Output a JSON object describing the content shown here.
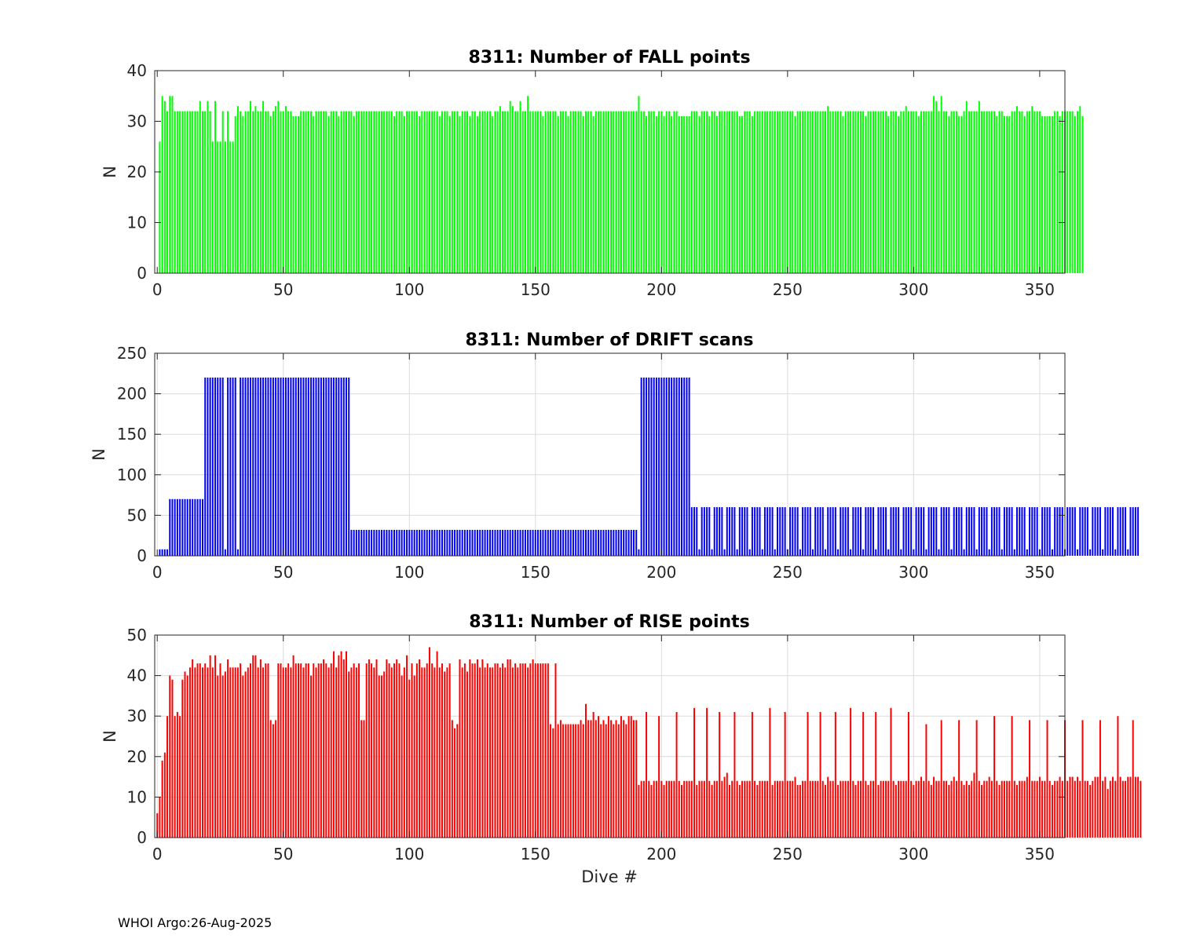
{
  "footer": {
    "note": "WHOI Argo:26-Aug-2025"
  },
  "chart_data": [
    {
      "type": "bar",
      "title": "8311: Number of FALL points",
      "xlabel": "",
      "ylabel": "N",
      "xlim": [
        -1,
        360
      ],
      "ylim": [
        0,
        40
      ],
      "xticks": [
        "0",
        "50",
        "100",
        "150",
        "200",
        "250",
        "300",
        "350"
      ],
      "yticks": [
        "0",
        "10",
        "20",
        "30",
        "40"
      ],
      "grid": false,
      "color": "#00ff00",
      "x_start": 1,
      "values": [
        26,
        35,
        34,
        32,
        35,
        35,
        32,
        32,
        32,
        32,
        32,
        32,
        32,
        32,
        32,
        32,
        34,
        32,
        32,
        34,
        32,
        26,
        34,
        26,
        26,
        32,
        26,
        32,
        26,
        26,
        31,
        33,
        32,
        31,
        32,
        32,
        34,
        32,
        33,
        32,
        32,
        34,
        32,
        32,
        31,
        32,
        33,
        34,
        32,
        32,
        33,
        32,
        32,
        31,
        31,
        31,
        32,
        32,
        32,
        32,
        32,
        31,
        32,
        32,
        32,
        32,
        32,
        31,
        32,
        32,
        32,
        31,
        32,
        32,
        32,
        32,
        32,
        31,
        32,
        32,
        32,
        32,
        32,
        32,
        32,
        32,
        32,
        32,
        32,
        32,
        32,
        32,
        32,
        31,
        32,
        32,
        32,
        31,
        32,
        32,
        32,
        32,
        32,
        31,
        32,
        32,
        32,
        32,
        32,
        32,
        32,
        31,
        32,
        32,
        32,
        31,
        32,
        32,
        32,
        31,
        32,
        32,
        32,
        31,
        32,
        32,
        31,
        32,
        32,
        32,
        32,
        32,
        31,
        32,
        32,
        33,
        32,
        32,
        32,
        34,
        33,
        32,
        32,
        34,
        32,
        32,
        35,
        32,
        32,
        32,
        32,
        32,
        31,
        32,
        32,
        32,
        32,
        32,
        31,
        32,
        32,
        32,
        31,
        32,
        32,
        32,
        32,
        32,
        31,
        32,
        32,
        32,
        31,
        32,
        32,
        32,
        32,
        32,
        32,
        32,
        32,
        32,
        32,
        32,
        32,
        32,
        32,
        32,
        32,
        32,
        35,
        32,
        32,
        31,
        32,
        32,
        32,
        31,
        32,
        32,
        31,
        32,
        32,
        31,
        32,
        32,
        31,
        31,
        31,
        31,
        31,
        32,
        32,
        32,
        31,
        32,
        32,
        32,
        31,
        32,
        32,
        31,
        32,
        32,
        32,
        32,
        32,
        32,
        32,
        32,
        31,
        31,
        32,
        32,
        32,
        31,
        32,
        32,
        32,
        32,
        32,
        32,
        32,
        32,
        32,
        32,
        32,
        32,
        32,
        32,
        32,
        32,
        31,
        32,
        32,
        32,
        32,
        32,
        32,
        32,
        32,
        32,
        32,
        32,
        32,
        33,
        32,
        32,
        32,
        32,
        32,
        31,
        32,
        32,
        32,
        32,
        32,
        32,
        32,
        32,
        31,
        32,
        32,
        32,
        32,
        32,
        32,
        32,
        32,
        31,
        32,
        32,
        32,
        31,
        32,
        32,
        33,
        32,
        32,
        32,
        32,
        31,
        32,
        32,
        32,
        32,
        32,
        35,
        34,
        32,
        35,
        32,
        32,
        31,
        32,
        32,
        32,
        31,
        31,
        32,
        34,
        32,
        32,
        32,
        32,
        34,
        32,
        32,
        32,
        32,
        32,
        32,
        31,
        32,
        32,
        31,
        31,
        31,
        32,
        32,
        33,
        32,
        32,
        31,
        32,
        32,
        33,
        32,
        32,
        32,
        31,
        31,
        31,
        31,
        31,
        32,
        32,
        31,
        32,
        32,
        32,
        32,
        32,
        31,
        32,
        33,
        31
      ]
    },
    {
      "type": "bar",
      "title": "8311: Number of DRIFT scans",
      "xlabel": "",
      "ylabel": "N",
      "xlim": [
        -1,
        360
      ],
      "ylim": [
        0,
        250
      ],
      "xticks": [
        "0",
        "50",
        "100",
        "150",
        "200",
        "250",
        "300",
        "350"
      ],
      "yticks": [
        "0",
        "50",
        "100",
        "150",
        "200",
        "250"
      ],
      "grid": true,
      "color": "#0000ff",
      "x_start": 1,
      "values": [
        8,
        8,
        8,
        8,
        70,
        70,
        70,
        70,
        70,
        70,
        70,
        70,
        70,
        70,
        70,
        70,
        70,
        70,
        220,
        220,
        220,
        220,
        220,
        220,
        220,
        220,
        8,
        220,
        220,
        220,
        220,
        8,
        220,
        220,
        220,
        220,
        220,
        220,
        220,
        220,
        220,
        220,
        220,
        220,
        220,
        220,
        220,
        220,
        220,
        220,
        220,
        220,
        220,
        220,
        220,
        220,
        220,
        220,
        220,
        220,
        220,
        220,
        220,
        220,
        220,
        220,
        220,
        220,
        220,
        220,
        220,
        220,
        220,
        220,
        220,
        220,
        32,
        32,
        32,
        32,
        32,
        32,
        32,
        32,
        32,
        32,
        32,
        32,
        32,
        32,
        32,
        32,
        32,
        32,
        32,
        32,
        32,
        32,
        32,
        32,
        32,
        32,
        32,
        32,
        32,
        32,
        32,
        32,
        32,
        32,
        32,
        32,
        32,
        32,
        32,
        32,
        32,
        32,
        32,
        32,
        32,
        32,
        32,
        32,
        32,
        32,
        32,
        32,
        32,
        32,
        32,
        32,
        32,
        32,
        32,
        32,
        32,
        32,
        32,
        32,
        32,
        32,
        32,
        32,
        32,
        32,
        32,
        32,
        32,
        32,
        32,
        32,
        32,
        32,
        32,
        32,
        32,
        32,
        32,
        32,
        32,
        32,
        32,
        32,
        32,
        32,
        32,
        32,
        32,
        32,
        32,
        32,
        32,
        32,
        32,
        32,
        32,
        32,
        32,
        32,
        32,
        32,
        32,
        32,
        32,
        32,
        32,
        32,
        32,
        32,
        8,
        220,
        220,
        220,
        220,
        220,
        220,
        220,
        220,
        220,
        220,
        220,
        220,
        220,
        220,
        220,
        220,
        220,
        220,
        220,
        220,
        60,
        60,
        60,
        8,
        60,
        60,
        60,
        60,
        8,
        60,
        60,
        60,
        60,
        8,
        60,
        60,
        60,
        60,
        8,
        60,
        60,
        60,
        60,
        8,
        60,
        60,
        60,
        60,
        8,
        60,
        60,
        60,
        60,
        8,
        60,
        60,
        60,
        60,
        8,
        60,
        60,
        60,
        60,
        8,
        60,
        60,
        60,
        60,
        8,
        60,
        60,
        60,
        60,
        8,
        60,
        60,
        60,
        60,
        8,
        60,
        60,
        60,
        60,
        8,
        60,
        60,
        60,
        60,
        8,
        60,
        60,
        60,
        60,
        8,
        60,
        60,
        60,
        60,
        8,
        60,
        60,
        60,
        60,
        8,
        60,
        60,
        60,
        60,
        8,
        60,
        60,
        60,
        60,
        8,
        60,
        60,
        60,
        60,
        8,
        60,
        60,
        60,
        60,
        8,
        60,
        60,
        60,
        60,
        8,
        60,
        60,
        60,
        60,
        8,
        60,
        60,
        60,
        60,
        8,
        60,
        60,
        60,
        60,
        8,
        60,
        60,
        60,
        60,
        8,
        60,
        60,
        60,
        60,
        8,
        60,
        60,
        60,
        60,
        8,
        60,
        60,
        60,
        60,
        8,
        60,
        60,
        60,
        60,
        8,
        60,
        60,
        60,
        60,
        8,
        60,
        60,
        60,
        60,
        8,
        60,
        60,
        60,
        60,
        8,
        60,
        60,
        60,
        60,
        8,
        60,
        60,
        60,
        60,
        8,
        60,
        60,
        60,
        60
      ]
    },
    {
      "type": "bar",
      "title": "8311: Number of RISE points",
      "xlabel": "Dive #",
      "ylabel": "N",
      "xlim": [
        -1,
        360
      ],
      "ylim": [
        0,
        50
      ],
      "xticks": [
        "0",
        "50",
        "100",
        "150",
        "200",
        "250",
        "300",
        "350"
      ],
      "yticks": [
        "0",
        "10",
        "20",
        "30",
        "40",
        "50"
      ],
      "grid": true,
      "color": "#ff0000",
      "x_start": 0,
      "values": [
        6,
        10,
        19,
        21,
        30,
        40,
        39,
        30,
        31,
        30,
        39,
        41,
        40,
        42,
        44,
        42,
        43,
        43,
        42,
        43,
        42,
        45,
        42,
        45,
        40,
        43,
        40,
        41,
        44,
        42,
        42,
        42,
        42,
        43,
        40,
        41,
        42,
        43,
        45,
        45,
        42,
        44,
        42,
        43,
        43,
        29,
        28,
        29,
        43,
        43,
        42,
        42,
        43,
        42,
        45,
        43,
        43,
        43,
        42,
        43,
        43,
        40,
        43,
        42,
        43,
        43,
        44,
        43,
        42,
        43,
        46,
        42,
        45,
        46,
        44,
        46,
        41,
        42,
        43,
        42,
        43,
        29,
        29,
        43,
        44,
        43,
        42,
        44,
        40,
        40,
        41,
        44,
        43,
        42,
        43,
        44,
        43,
        40,
        42,
        45,
        39,
        43,
        40,
        43,
        44,
        42,
        42,
        43,
        47,
        43,
        42,
        46,
        42,
        43,
        41,
        42,
        43,
        29,
        27,
        28,
        44,
        42,
        43,
        41,
        44,
        43,
        43,
        44,
        42,
        44,
        42,
        43,
        42,
        42,
        43,
        43,
        42,
        43,
        42,
        44,
        44,
        42,
        43,
        42,
        43,
        43,
        43,
        42,
        43,
        44,
        43,
        43,
        43,
        43,
        43,
        43,
        28,
        27,
        43,
        28,
        29,
        28,
        28,
        28,
        28,
        28,
        28,
        28,
        29,
        28,
        33,
        29,
        29,
        31,
        29,
        30,
        28,
        29,
        28,
        30,
        29,
        28,
        29,
        28,
        30,
        29,
        28,
        30,
        30,
        29,
        29,
        13,
        14,
        14,
        31,
        14,
        13,
        14,
        14,
        30,
        14,
        13,
        14,
        14,
        14,
        14,
        31,
        14,
        13,
        14,
        14,
        14,
        14,
        32,
        13,
        14,
        14,
        14,
        32,
        14,
        13,
        14,
        14,
        31,
        14,
        15,
        16,
        13,
        14,
        31,
        14,
        13,
        14,
        14,
        14,
        14,
        31,
        14,
        13,
        14,
        14,
        14,
        14,
        32,
        13,
        14,
        14,
        14,
        14,
        31,
        14,
        14,
        14,
        15,
        13,
        13,
        14,
        14,
        31,
        14,
        14,
        14,
        14,
        31,
        14,
        13,
        15,
        14,
        14,
        31,
        13,
        14,
        14,
        14,
        14,
        32,
        14,
        13,
        14,
        14,
        31,
        14,
        13,
        14,
        14,
        31,
        13,
        14,
        14,
        14,
        14,
        32,
        14,
        13,
        14,
        14,
        14,
        14,
        31,
        14,
        13,
        14,
        14,
        15,
        14,
        28,
        14,
        13,
        15,
        14,
        14,
        29,
        14,
        14,
        13,
        14,
        15,
        14,
        29,
        14,
        13,
        14,
        13,
        14,
        16,
        29,
        14,
        13,
        14,
        14,
        15,
        14,
        30,
        14,
        13,
        14,
        14,
        14,
        14,
        30,
        14,
        13,
        14,
        14,
        14,
        15,
        29,
        14,
        14,
        14,
        15,
        14,
        14,
        29,
        14,
        13,
        14,
        14,
        15,
        14,
        29,
        14,
        15,
        15,
        14,
        15,
        14,
        29,
        14,
        14,
        13,
        14,
        15,
        15,
        29,
        14,
        15,
        12,
        14,
        15,
        14,
        30,
        15,
        14,
        14,
        15,
        15,
        29,
        15,
        15,
        14
      ]
    }
  ]
}
